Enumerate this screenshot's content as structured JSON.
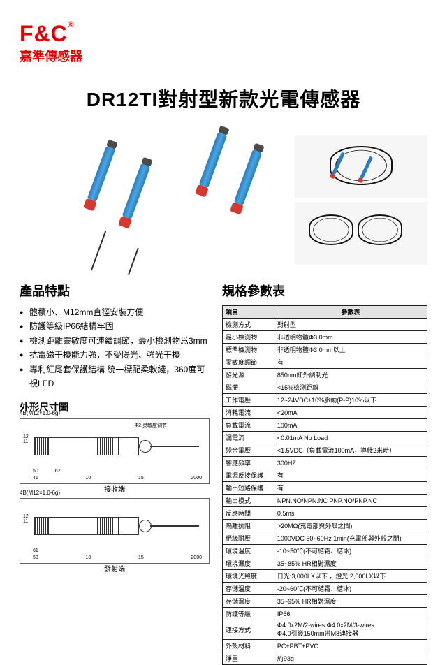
{
  "brand": {
    "mark": "F&C",
    "reg": "®",
    "sub": "嘉準傳感器"
  },
  "title": "DR12TI對射型新款光電傳感器",
  "features": {
    "heading": "產品特點",
    "items": [
      "體積小、M12mm直徑安裝方便",
      "防護等級IP66結構牢固",
      "檢測距離靈敏度可連續調節，最小檢測物爲3mm",
      "抗電磁干擾能力強，不受陽光、強光干擾",
      "專利紅尾套保護結構  統一標配柔軟綫，360度可視LED"
    ]
  },
  "dimensions": {
    "heading": "外形尺寸圖",
    "drawings": [
      {
        "thread": "4B(M12×1.0-6g)",
        "adjust": "Φ2 灵敏度调节",
        "widths": [
          "41",
          "50",
          "62",
          "10",
          "15",
          "2000"
        ],
        "vert": [
          "12",
          "11"
        ],
        "side": "Φ12",
        "label": "接收端"
      },
      {
        "thread": "4B(M12×1.0-6g)",
        "adjust": "",
        "widths": [
          "50",
          "61",
          "10",
          "15",
          "2000"
        ],
        "vert": [
          "12",
          "11"
        ],
        "side": "Φ12",
        "label": "發射端"
      }
    ]
  },
  "spec": {
    "heading": "規格參數表",
    "header": [
      "項目",
      "參數表"
    ],
    "rows": [
      [
        "檢測方式",
        "對射型"
      ],
      [
        "最小檢測物",
        "非透明物體Φ3.0mm"
      ],
      [
        "標準檢測物",
        "非透明物體Φ3.0mm以上"
      ],
      [
        "零敏度調節",
        "有"
      ],
      [
        "發光源",
        "850nm紅外調制光"
      ],
      [
        "磁滯",
        "<15%檢測距離"
      ],
      [
        "工作電壓",
        "12~24VDC±10%脈動(P-P)10%以下"
      ],
      [
        "消耗電流",
        "<20mA"
      ],
      [
        "負載電流",
        "100mA"
      ],
      [
        "漏電流",
        "<0.01mA No Load"
      ],
      [
        "殘余電壓",
        "<1.5VDC（負載電流100mA，導綫2米時）"
      ],
      [
        "響應頻率",
        "300HZ"
      ],
      [
        "電源反接保護",
        "有"
      ],
      [
        "輸出短路保護",
        "有"
      ],
      [
        "輸出模式",
        "NPN.NO/NPN.NC   PNP.NO/PNP.NC"
      ],
      [
        "反應時間",
        "0.5ms"
      ],
      [
        "隔離抗阻",
        ">20MΩ(充電部與外殼之間)"
      ],
      [
        "絕緣耐壓",
        "1000VDC 50~60Hz 1min(充電部與外殼之間)"
      ],
      [
        "環境溫度",
        "-10~50℃(不可結霜、結冰)"
      ],
      [
        "環境濕度",
        "35~85% HR相對濕度"
      ],
      [
        "環境光照度",
        "日光:3,000LX以下  ，燈光:2,000LX以下"
      ],
      [
        "存儲溫度",
        "-20~60℃(不可結霜、結冰)"
      ],
      [
        "存儲濕度",
        "35~95% HR相對濕度"
      ],
      [
        "防護等級",
        "IP66"
      ],
      [
        "連接方式",
        "Φ4.0x2M/2-wires   Φ4.0x2M/3-wires\nΦ4.0引綫150mm帶M8連接器"
      ],
      [
        "外殼材料",
        "PC+PBT+PVC"
      ],
      [
        "淨重",
        "約93g"
      ]
    ]
  }
}
